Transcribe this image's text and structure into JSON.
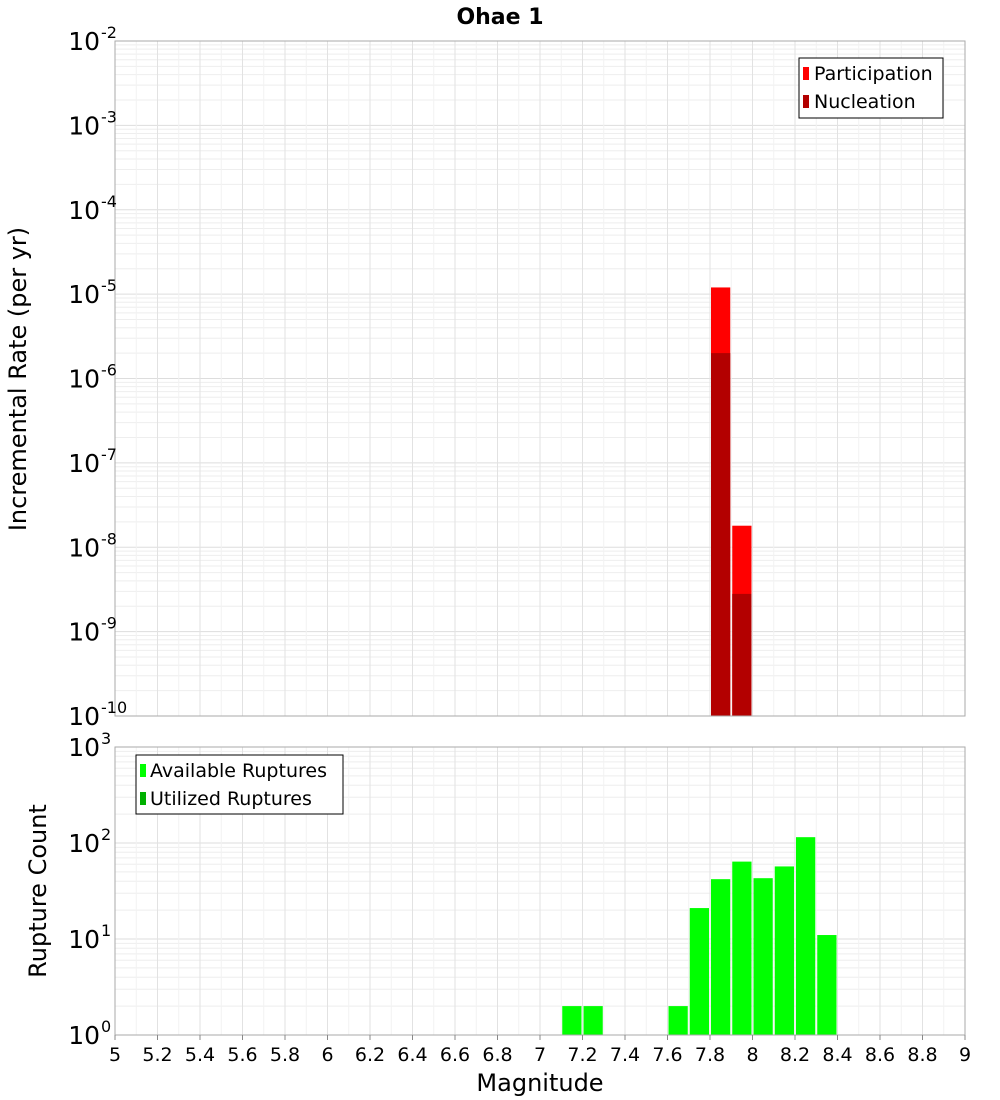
{
  "chart_data": [
    {
      "type": "bar",
      "title": "Ohae 1",
      "ylabel": "Incremental Rate (per yr)",
      "xlabel": "",
      "y_scale": "log",
      "ylim_exp": [
        -10,
        -2
      ],
      "xlim": [
        5,
        9
      ],
      "bin_width": 0.1,
      "legend": "top-right",
      "series": [
        {
          "name": "Participation",
          "color": "#ff0000",
          "x": [
            7.85,
            7.95
          ],
          "values": [
            1.2e-05,
            1.8e-08
          ]
        },
        {
          "name": "Nucleation",
          "color": "#b30000",
          "x": [
            7.85,
            7.95
          ],
          "values": [
            2e-06,
            2.8e-09
          ]
        }
      ],
      "y_tick_exponents": [
        -2,
        -3,
        -4,
        -5,
        -6,
        -7,
        -8,
        -9,
        -10
      ]
    },
    {
      "type": "bar",
      "title": "",
      "ylabel": "Rupture Count",
      "xlabel": "Magnitude",
      "y_scale": "log",
      "ylim_exp": [
        0,
        3
      ],
      "xlim": [
        5,
        9
      ],
      "bin_width": 0.1,
      "legend": "top-left",
      "series": [
        {
          "name": "Available Ruptures",
          "color": "#00ff00",
          "x": [
            7.15,
            7.25,
            7.35,
            7.55,
            7.65,
            7.75,
            7.85,
            7.95,
            8.05,
            8.15,
            8.25,
            8.35
          ],
          "values": [
            2,
            2,
            1,
            1,
            2,
            21,
            42,
            64,
            43,
            57,
            115,
            11
          ]
        },
        {
          "name": "Utilized Ruptures",
          "color": "#00b000",
          "x": [
            7.85,
            7.95
          ],
          "values": [
            1,
            1
          ]
        }
      ],
      "y_tick_exponents": [
        3,
        2,
        1,
        0
      ],
      "x_ticks": [
        "5",
        "5.2",
        "5.4",
        "5.6",
        "5.8",
        "6",
        "6.2",
        "6.4",
        "6.6",
        "6.8",
        "7",
        "7.2",
        "7.4",
        "7.6",
        "7.8",
        "8",
        "8.2",
        "8.4",
        "8.6",
        "8.8",
        "9"
      ]
    }
  ]
}
